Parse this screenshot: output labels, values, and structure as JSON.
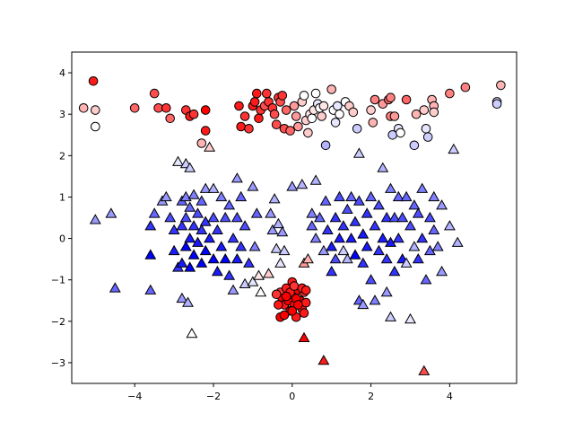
{
  "chart_data": {
    "type": "scatter",
    "title": "",
    "xlabel": "",
    "ylabel": "",
    "xlim": [
      -5.6,
      5.7
    ],
    "ylim": [
      -3.5,
      4.5
    ],
    "grid": false,
    "xticks": [
      -4,
      -2,
      0,
      2,
      4
    ],
    "yticks": [
      -3,
      -2,
      -1,
      0,
      1,
      2,
      3,
      4
    ],
    "xtick_labels": [
      "−4",
      "−2",
      "0",
      "2",
      "4"
    ],
    "ytick_labels": [
      "−3",
      "−2",
      "−1",
      "0",
      "1",
      "2",
      "3",
      "4"
    ],
    "colormap": "bwr",
    "marker_edge_color": "#000000",
    "circles": [
      {
        "x": -5.3,
        "y": 3.15,
        "c": 0.65
      },
      {
        "x": -5.0,
        "y": 3.1,
        "c": 0.6
      },
      {
        "x": -5.05,
        "y": 3.8,
        "c": 0.95
      },
      {
        "x": -5.0,
        "y": 2.7,
        "c": 0.5
      },
      {
        "x": -4.0,
        "y": 3.15,
        "c": 0.8
      },
      {
        "x": -3.5,
        "y": 3.5,
        "c": 0.85
      },
      {
        "x": -3.4,
        "y": 3.15,
        "c": 0.85
      },
      {
        "x": -3.2,
        "y": 3.15,
        "c": 0.9
      },
      {
        "x": -3.1,
        "y": 2.9,
        "c": 0.8
      },
      {
        "x": -2.7,
        "y": 3.1,
        "c": 0.9
      },
      {
        "x": -2.6,
        "y": 2.95,
        "c": 0.95
      },
      {
        "x": -2.5,
        "y": 3.0,
        "c": 0.9
      },
      {
        "x": -2.2,
        "y": 3.1,
        "c": 1.0
      },
      {
        "x": -2.3,
        "y": 2.3,
        "c": 0.65
      },
      {
        "x": -2.2,
        "y": 2.6,
        "c": 0.95
      },
      {
        "x": -1.35,
        "y": 3.2,
        "c": 0.95
      },
      {
        "x": -1.3,
        "y": 2.7,
        "c": 0.95
      },
      {
        "x": -1.2,
        "y": 2.95,
        "c": 0.9
      },
      {
        "x": -1.1,
        "y": 2.65,
        "c": 0.9
      },
      {
        "x": -1.0,
        "y": 3.2,
        "c": 0.95
      },
      {
        "x": -0.95,
        "y": 3.3,
        "c": 0.95
      },
      {
        "x": -0.9,
        "y": 3.5,
        "c": 0.95
      },
      {
        "x": -0.85,
        "y": 2.9,
        "c": 0.95
      },
      {
        "x": -0.8,
        "y": 3.1,
        "c": 0.9
      },
      {
        "x": -0.7,
        "y": 3.2,
        "c": 0.85
      },
      {
        "x": -0.65,
        "y": 3.5,
        "c": 0.9
      },
      {
        "x": -0.6,
        "y": 3.3,
        "c": 0.9
      },
      {
        "x": -0.5,
        "y": 3.15,
        "c": 0.9
      },
      {
        "x": -0.45,
        "y": 3.0,
        "c": 0.85
      },
      {
        "x": -0.4,
        "y": 2.75,
        "c": 0.85
      },
      {
        "x": -0.35,
        "y": 3.4,
        "c": 0.9
      },
      {
        "x": -0.3,
        "y": 3.3,
        "c": 0.85
      },
      {
        "x": -0.25,
        "y": 3.45,
        "c": 0.9
      },
      {
        "x": -0.2,
        "y": 2.65,
        "c": 0.85
      },
      {
        "x": -0.15,
        "y": 3.1,
        "c": 0.8
      },
      {
        "x": -0.05,
        "y": 2.6,
        "c": 0.8
      },
      {
        "x": 0.05,
        "y": 3.2,
        "c": 0.7
      },
      {
        "x": 0.1,
        "y": 2.95,
        "c": 0.7
      },
      {
        "x": 0.15,
        "y": 2.7,
        "c": 0.7
      },
      {
        "x": 0.25,
        "y": 3.3,
        "c": 0.6
      },
      {
        "x": 0.3,
        "y": 3.45,
        "c": 0.5
      },
      {
        "x": 0.35,
        "y": 2.85,
        "c": 0.6
      },
      {
        "x": 0.4,
        "y": 2.55,
        "c": 0.6
      },
      {
        "x": 0.45,
        "y": 3.0,
        "c": 0.55
      },
      {
        "x": 0.5,
        "y": 2.9,
        "c": 0.5
      },
      {
        "x": 0.55,
        "y": 3.1,
        "c": 0.55
      },
      {
        "x": 0.6,
        "y": 3.5,
        "c": 0.5
      },
      {
        "x": 0.65,
        "y": 3.25,
        "c": 0.45
      },
      {
        "x": 0.7,
        "y": 3.15,
        "c": 0.5
      },
      {
        "x": 0.75,
        "y": 2.95,
        "c": 0.6
      },
      {
        "x": 0.8,
        "y": 3.2,
        "c": 0.55
      },
      {
        "x": 0.85,
        "y": 2.25,
        "c": 0.35
      },
      {
        "x": 1.0,
        "y": 3.6,
        "c": 0.65
      },
      {
        "x": 1.05,
        "y": 3.1,
        "c": 0.5
      },
      {
        "x": 1.1,
        "y": 2.8,
        "c": 0.45
      },
      {
        "x": 1.15,
        "y": 3.2,
        "c": 0.45
      },
      {
        "x": 1.2,
        "y": 3.0,
        "c": 0.5
      },
      {
        "x": 1.35,
        "y": 3.3,
        "c": 0.5
      },
      {
        "x": 1.45,
        "y": 3.2,
        "c": 0.6
      },
      {
        "x": 1.55,
        "y": 3.05,
        "c": 0.6
      },
      {
        "x": 1.65,
        "y": 2.65,
        "c": 0.4
      },
      {
        "x": 2.0,
        "y": 3.1,
        "c": 0.6
      },
      {
        "x": 2.05,
        "y": 2.8,
        "c": 0.65
      },
      {
        "x": 2.1,
        "y": 3.35,
        "c": 0.75
      },
      {
        "x": 2.3,
        "y": 3.25,
        "c": 0.7
      },
      {
        "x": 2.45,
        "y": 3.35,
        "c": 0.8
      },
      {
        "x": 2.5,
        "y": 3.4,
        "c": 0.75
      },
      {
        "x": 2.5,
        "y": 2.95,
        "c": 0.75
      },
      {
        "x": 2.55,
        "y": 2.5,
        "c": 0.4
      },
      {
        "x": 2.6,
        "y": 2.95,
        "c": 0.7
      },
      {
        "x": 2.7,
        "y": 2.65,
        "c": 0.45
      },
      {
        "x": 2.75,
        "y": 2.55,
        "c": 0.5
      },
      {
        "x": 2.9,
        "y": 3.35,
        "c": 0.8
      },
      {
        "x": 3.1,
        "y": 2.25,
        "c": 0.4
      },
      {
        "x": 3.15,
        "y": 3.0,
        "c": 0.65
      },
      {
        "x": 3.35,
        "y": 3.1,
        "c": 0.6
      },
      {
        "x": 3.4,
        "y": 2.65,
        "c": 0.45
      },
      {
        "x": 3.45,
        "y": 2.45,
        "c": 0.4
      },
      {
        "x": 3.55,
        "y": 3.35,
        "c": 0.65
      },
      {
        "x": 3.6,
        "y": 3.2,
        "c": 0.65
      },
      {
        "x": 3.6,
        "y": 3.05,
        "c": 0.6
      },
      {
        "x": 4.0,
        "y": 3.5,
        "c": 0.75
      },
      {
        "x": 4.4,
        "y": 3.65,
        "c": 0.75
      },
      {
        "x": 5.2,
        "y": 3.3,
        "c": 0.45
      },
      {
        "x": 5.2,
        "y": 3.25,
        "c": 0.4
      },
      {
        "x": 5.3,
        "y": 3.7,
        "c": 0.65
      },
      {
        "x": -0.3,
        "y": -1.3,
        "c": 0.9
      },
      {
        "x": -0.25,
        "y": -1.45,
        "c": 1.0
      },
      {
        "x": -0.2,
        "y": -1.6,
        "c": 0.95
      },
      {
        "x": -0.15,
        "y": -1.2,
        "c": 0.95
      },
      {
        "x": -0.1,
        "y": -1.5,
        "c": 1.0
      },
      {
        "x": -0.05,
        "y": -1.75,
        "c": 1.0
      },
      {
        "x": 0.0,
        "y": -1.05,
        "c": 0.95
      },
      {
        "x": 0.0,
        "y": -1.35,
        "c": 1.0
      },
      {
        "x": 0.05,
        "y": -1.6,
        "c": 1.0
      },
      {
        "x": 0.1,
        "y": -1.9,
        "c": 0.95
      },
      {
        "x": 0.15,
        "y": -1.25,
        "c": 1.0
      },
      {
        "x": 0.2,
        "y": -1.5,
        "c": 1.0
      },
      {
        "x": 0.25,
        "y": -1.7,
        "c": 0.95
      },
      {
        "x": 0.3,
        "y": -1.3,
        "c": 0.9
      },
      {
        "x": 0.35,
        "y": -1.55,
        "c": 0.95
      },
      {
        "x": -0.35,
        "y": -1.6,
        "c": 0.95
      },
      {
        "x": -0.3,
        "y": -1.9,
        "c": 1.0
      },
      {
        "x": 0.1,
        "y": -1.45,
        "c": 1.0
      },
      {
        "x": -0.05,
        "y": -1.3,
        "c": 0.95
      },
      {
        "x": 0.05,
        "y": -1.15,
        "c": 0.9
      },
      {
        "x": -0.2,
        "y": -1.85,
        "c": 1.0
      },
      {
        "x": 0.25,
        "y": -1.2,
        "c": 0.95
      },
      {
        "x": 0.35,
        "y": -1.25,
        "c": 0.95
      },
      {
        "x": -0.4,
        "y": -1.35,
        "c": 0.9
      },
      {
        "x": 0.0,
        "y": -1.75,
        "c": 1.0
      },
      {
        "x": 0.15,
        "y": -1.6,
        "c": 1.0
      },
      {
        "x": -0.15,
        "y": -1.4,
        "c": 1.0
      },
      {
        "x": 0.3,
        "y": -1.8,
        "c": 0.95
      }
    ],
    "triangles": [
      {
        "x": -5.0,
        "y": 0.45,
        "c": 0.3
      },
      {
        "x": -4.6,
        "y": 0.6,
        "c": 0.3
      },
      {
        "x": -4.5,
        "y": -1.2,
        "c": 0.2
      },
      {
        "x": -3.6,
        "y": -1.25,
        "c": 0.2
      },
      {
        "x": -3.6,
        "y": -0.4,
        "c": 0.0
      },
      {
        "x": -3.6,
        "y": 0.3,
        "c": 0.1
      },
      {
        "x": -3.5,
        "y": 0.6,
        "c": 0.2
      },
      {
        "x": -3.3,
        "y": 0.9,
        "c": 0.3
      },
      {
        "x": -3.2,
        "y": 1.0,
        "c": 0.3
      },
      {
        "x": -3.1,
        "y": 0.5,
        "c": 0.15
      },
      {
        "x": -3.0,
        "y": 0.2,
        "c": 0.1
      },
      {
        "x": -3.0,
        "y": -0.3,
        "c": 0.05
      },
      {
        "x": -2.9,
        "y": -0.7,
        "c": 0.1
      },
      {
        "x": -2.9,
        "y": 1.85,
        "c": 0.45
      },
      {
        "x": -2.8,
        "y": 0.9,
        "c": 0.2
      },
      {
        "x": -2.8,
        "y": 0.3,
        "c": 0.1
      },
      {
        "x": -2.8,
        "y": -0.6,
        "c": 0.05
      },
      {
        "x": -2.8,
        "y": -1.45,
        "c": 0.3
      },
      {
        "x": -2.7,
        "y": 1.8,
        "c": 0.4
      },
      {
        "x": -2.7,
        "y": 1.0,
        "c": 0.25
      },
      {
        "x": -2.7,
        "y": 0.5,
        "c": 0.15
      },
      {
        "x": -2.7,
        "y": -0.2,
        "c": 0.0
      },
      {
        "x": -2.65,
        "y": -1.55,
        "c": 0.35
      },
      {
        "x": -2.6,
        "y": 1.7,
        "c": 0.4
      },
      {
        "x": -2.6,
        "y": 0.75,
        "c": 0.2
      },
      {
        "x": -2.6,
        "y": 0.0,
        "c": 0.05
      },
      {
        "x": -2.6,
        "y": -0.7,
        "c": 0.0
      },
      {
        "x": -2.55,
        "y": -2.3,
        "c": 0.5
      },
      {
        "x": -2.5,
        "y": 1.05,
        "c": 0.25
      },
      {
        "x": -2.5,
        "y": 0.3,
        "c": 0.1
      },
      {
        "x": -2.5,
        "y": -0.4,
        "c": 0.0
      },
      {
        "x": -2.4,
        "y": 0.6,
        "c": 0.15
      },
      {
        "x": -2.4,
        "y": -0.1,
        "c": 0.05
      },
      {
        "x": -2.3,
        "y": 0.9,
        "c": 0.2
      },
      {
        "x": -2.3,
        "y": 0.2,
        "c": 0.1
      },
      {
        "x": -2.3,
        "y": -0.6,
        "c": 0.0
      },
      {
        "x": -2.2,
        "y": 1.2,
        "c": 0.3
      },
      {
        "x": -2.2,
        "y": 0.4,
        "c": 0.1
      },
      {
        "x": -2.2,
        "y": -0.3,
        "c": 0.0
      },
      {
        "x": -2.1,
        "y": 2.2,
        "c": 0.6
      },
      {
        "x": -2.1,
        "y": 0.0,
        "c": 0.05
      },
      {
        "x": -2.0,
        "y": 1.2,
        "c": 0.35
      },
      {
        "x": -2.0,
        "y": 0.5,
        "c": 0.15
      },
      {
        "x": -2.0,
        "y": -0.5,
        "c": 0.0
      },
      {
        "x": -1.9,
        "y": 0.2,
        "c": 0.1
      },
      {
        "x": -1.9,
        "y": -0.8,
        "c": 0.05
      },
      {
        "x": -1.8,
        "y": 1.0,
        "c": 0.25
      },
      {
        "x": -1.8,
        "y": -0.2,
        "c": 0.05
      },
      {
        "x": -1.7,
        "y": 0.5,
        "c": 0.15
      },
      {
        "x": -1.7,
        "y": -0.5,
        "c": 0.0
      },
      {
        "x": -1.6,
        "y": 0.8,
        "c": 0.2
      },
      {
        "x": -1.6,
        "y": -0.9,
        "c": 0.1
      },
      {
        "x": -1.5,
        "y": 0.0,
        "c": 0.1
      },
      {
        "x": -1.5,
        "y": -1.25,
        "c": 0.3
      },
      {
        "x": -1.4,
        "y": 1.45,
        "c": 0.3
      },
      {
        "x": -1.4,
        "y": 0.5,
        "c": 0.15
      },
      {
        "x": -1.4,
        "y": -0.5,
        "c": 0.05
      },
      {
        "x": -1.3,
        "y": 1.0,
        "c": 0.2
      },
      {
        "x": -1.3,
        "y": -0.2,
        "c": 0.1
      },
      {
        "x": -1.2,
        "y": -1.1,
        "c": 0.4
      },
      {
        "x": -1.2,
        "y": 0.3,
        "c": 0.15
      },
      {
        "x": -1.1,
        "y": -0.6,
        "c": 0.1
      },
      {
        "x": -1.0,
        "y": 1.25,
        "c": 0.3
      },
      {
        "x": -1.0,
        "y": -1.05,
        "c": 0.45
      },
      {
        "x": -0.95,
        "y": -0.2,
        "c": 0.25
      },
      {
        "x": -0.9,
        "y": 0.6,
        "c": 0.2
      },
      {
        "x": -0.85,
        "y": -0.9,
        "c": 0.55
      },
      {
        "x": -0.8,
        "y": -1.3,
        "c": 0.5
      },
      {
        "x": -0.6,
        "y": -0.85,
        "c": 0.6
      },
      {
        "x": -0.55,
        "y": 0.6,
        "c": 0.3
      },
      {
        "x": -0.5,
        "y": 0.2,
        "c": 0.3
      },
      {
        "x": -0.45,
        "y": 0.95,
        "c": 0.35
      },
      {
        "x": -0.4,
        "y": -0.25,
        "c": 0.4
      },
      {
        "x": -0.35,
        "y": 0.35,
        "c": 0.35
      },
      {
        "x": -0.3,
        "y": -0.6,
        "c": 0.45
      },
      {
        "x": -0.25,
        "y": 0.15,
        "c": 0.3
      },
      {
        "x": -0.2,
        "y": -0.3,
        "c": 0.4
      },
      {
        "x": 0.0,
        "y": 1.25,
        "c": 0.3
      },
      {
        "x": 0.25,
        "y": 1.3,
        "c": 0.35
      },
      {
        "x": 0.3,
        "y": -0.6,
        "c": 0.7
      },
      {
        "x": 0.4,
        "y": -0.5,
        "c": 0.65
      },
      {
        "x": 0.5,
        "y": 0.6,
        "c": 0.25
      },
      {
        "x": 0.5,
        "y": 0.3,
        "c": 0.2
      },
      {
        "x": 0.6,
        "y": 1.4,
        "c": 0.35
      },
      {
        "x": 0.6,
        "y": 0.0,
        "c": 0.25
      },
      {
        "x": 0.7,
        "y": 0.5,
        "c": 0.2
      },
      {
        "x": 0.8,
        "y": -0.3,
        "c": 0.3
      },
      {
        "x": 0.85,
        "y": 0.9,
        "c": 0.2
      },
      {
        "x": 0.9,
        "y": 0.2,
        "c": 0.1
      },
      {
        "x": 1.0,
        "y": -0.2,
        "c": 0.05
      },
      {
        "x": 1.0,
        "y": -0.8,
        "c": 0.1
      },
      {
        "x": 1.1,
        "y": 0.5,
        "c": 0.1
      },
      {
        "x": 1.1,
        "y": -0.5,
        "c": 0.15
      },
      {
        "x": 1.2,
        "y": 1.0,
        "c": 0.15
      },
      {
        "x": 1.2,
        "y": 0.0,
        "c": 0.05
      },
      {
        "x": 1.3,
        "y": -0.3,
        "c": 0.4
      },
      {
        "x": 1.3,
        "y": 0.3,
        "c": 0.1
      },
      {
        "x": 1.4,
        "y": 0.7,
        "c": 0.15
      },
      {
        "x": 1.4,
        "y": -0.5,
        "c": 0.35
      },
      {
        "x": 1.5,
        "y": 1.0,
        "c": 0.2
      },
      {
        "x": 1.5,
        "y": 0.0,
        "c": 0.05
      },
      {
        "x": 1.6,
        "y": -0.4,
        "c": 0.0
      },
      {
        "x": 1.6,
        "y": 0.4,
        "c": 0.1
      },
      {
        "x": 1.7,
        "y": 2.05,
        "c": 0.4
      },
      {
        "x": 1.7,
        "y": 0.9,
        "c": 0.15
      },
      {
        "x": 1.7,
        "y": -1.5,
        "c": 0.2
      },
      {
        "x": 1.8,
        "y": 0.1,
        "c": 0.05
      },
      {
        "x": 1.8,
        "y": -0.6,
        "c": 0.1
      },
      {
        "x": 1.8,
        "y": -1.6,
        "c": 0.3
      },
      {
        "x": 1.9,
        "y": 0.6,
        "c": 0.1
      },
      {
        "x": 1.9,
        "y": -0.2,
        "c": 0.05
      },
      {
        "x": 2.0,
        "y": 1.0,
        "c": 0.2
      },
      {
        "x": 2.0,
        "y": -1.0,
        "c": 0.15
      },
      {
        "x": 2.1,
        "y": 0.3,
        "c": 0.1
      },
      {
        "x": 2.1,
        "y": -1.5,
        "c": 0.25
      },
      {
        "x": 2.2,
        "y": 0.8,
        "c": 0.15
      },
      {
        "x": 2.2,
        "y": -0.3,
        "c": 0.1
      },
      {
        "x": 2.3,
        "y": 1.7,
        "c": 0.35
      },
      {
        "x": 2.3,
        "y": 0.0,
        "c": 0.05
      },
      {
        "x": 2.4,
        "y": 0.5,
        "c": 0.1
      },
      {
        "x": 2.4,
        "y": -0.5,
        "c": 0.1
      },
      {
        "x": 2.4,
        "y": -1.3,
        "c": 0.3
      },
      {
        "x": 2.5,
        "y": 1.2,
        "c": 0.25
      },
      {
        "x": 2.5,
        "y": -0.1,
        "c": 0.05
      },
      {
        "x": 2.5,
        "y": -1.9,
        "c": 0.4
      },
      {
        "x": 2.6,
        "y": 0.5,
        "c": 0.15
      },
      {
        "x": 2.6,
        "y": -0.8,
        "c": 0.1
      },
      {
        "x": 2.7,
        "y": 1.0,
        "c": 0.2
      },
      {
        "x": 2.7,
        "y": 0.0,
        "c": 0.1
      },
      {
        "x": 2.8,
        "y": -0.5,
        "c": 0.05
      },
      {
        "x": 2.8,
        "y": 0.5,
        "c": 0.15
      },
      {
        "x": 2.9,
        "y": -0.6,
        "c": 0.4
      },
      {
        "x": 2.9,
        "y": 1.0,
        "c": 0.2
      },
      {
        "x": 3.0,
        "y": -1.95,
        "c": 0.45
      },
      {
        "x": 3.0,
        "y": 0.3,
        "c": 0.15
      },
      {
        "x": 3.1,
        "y": 0.8,
        "c": 0.2
      },
      {
        "x": 3.1,
        "y": -0.2,
        "c": 0.35
      },
      {
        "x": 3.2,
        "y": 0.6,
        "c": 0.15
      },
      {
        "x": 3.2,
        "y": -0.5,
        "c": 0.1
      },
      {
        "x": 3.3,
        "y": 1.2,
        "c": 0.25
      },
      {
        "x": 3.3,
        "y": 0.0,
        "c": 0.1
      },
      {
        "x": 3.4,
        "y": -1.0,
        "c": 0.2
      },
      {
        "x": 3.5,
        "y": 0.5,
        "c": 0.15
      },
      {
        "x": 3.5,
        "y": -0.3,
        "c": 0.2
      },
      {
        "x": 3.6,
        "y": 1.0,
        "c": 0.25
      },
      {
        "x": 3.6,
        "y": 0.2,
        "c": 0.2
      },
      {
        "x": 3.7,
        "y": -0.2,
        "c": 0.25
      },
      {
        "x": 3.8,
        "y": 0.8,
        "c": 0.3
      },
      {
        "x": 4.0,
        "y": 0.3,
        "c": 0.35
      },
      {
        "x": 4.1,
        "y": 2.15,
        "c": 0.4
      },
      {
        "x": 4.2,
        "y": -0.1,
        "c": 0.35
      },
      {
        "x": 3.8,
        "y": -0.8,
        "c": 0.3
      },
      {
        "x": 0.3,
        "y": -2.4,
        "c": 1.0
      },
      {
        "x": 0.8,
        "y": -2.95,
        "c": 0.95
      },
      {
        "x": 3.35,
        "y": -3.2,
        "c": 0.85
      }
    ]
  }
}
